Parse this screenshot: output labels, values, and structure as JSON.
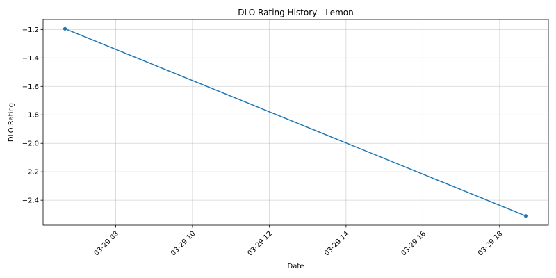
{
  "chart_data": {
    "type": "line",
    "title": "DLO Rating History - Lemon",
    "xlabel": "Date",
    "ylabel": "DLO Rating",
    "x_axis_type": "time",
    "x_ticks": [
      "03-29 08",
      "03-29 10",
      "03-29 12",
      "03-29 14",
      "03-29 16",
      "03-29 18"
    ],
    "x_tick_hours": [
      8,
      10,
      12,
      14,
      16,
      18
    ],
    "xlim_hours": [
      6.11,
      19.27
    ],
    "y_ticks": [
      -1.2,
      -1.4,
      -1.6,
      -1.8,
      -2.0,
      -2.2,
      -2.4
    ],
    "y_tick_labels": [
      "−1.2",
      "−1.4",
      "−1.6",
      "−1.8",
      "−2.0",
      "−2.2",
      "−2.4"
    ],
    "ylim": [
      -2.575,
      -1.13
    ],
    "grid": true,
    "series": [
      {
        "color": "#1f77b4",
        "marker": "circle",
        "points": [
          {
            "x_hours": 6.68,
            "y": -1.195
          },
          {
            "x_hours": 18.68,
            "y": -2.51
          }
        ]
      }
    ]
  }
}
